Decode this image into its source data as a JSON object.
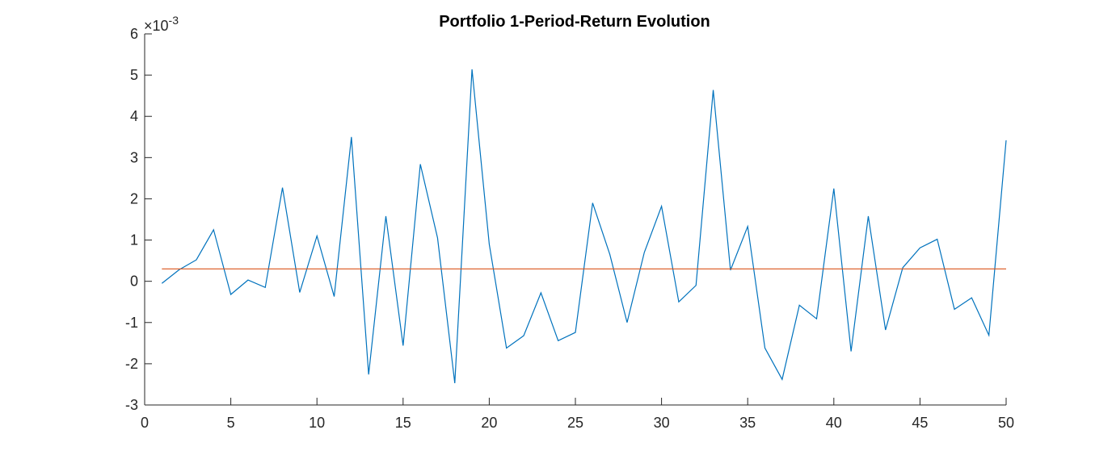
{
  "chart_data": {
    "type": "line",
    "title": "Portfolio 1-Period-Return Evolution",
    "xlabel": "",
    "ylabel": "",
    "xlim": [
      0,
      50
    ],
    "ylim": [
      -0.003,
      0.006
    ],
    "y_exponent_label": "×10",
    "y_exponent_power": "-3",
    "x_ticks": [
      "0",
      "5",
      "10",
      "15",
      "20",
      "25",
      "30",
      "35",
      "40",
      "45",
      "50"
    ],
    "y_ticks": [
      "-3",
      "-2",
      "-1",
      "0",
      "1",
      "2",
      "3",
      "4",
      "5",
      "6"
    ],
    "grid": false,
    "colors": {
      "returns": "#0072BD",
      "mean": "#D95319",
      "axis": "#262626"
    },
    "series": [
      {
        "type": "line",
        "x": [
          1,
          2,
          3,
          4,
          5,
          6,
          7,
          8,
          9,
          10,
          11,
          12,
          13,
          14,
          15,
          16,
          17,
          18,
          19,
          20,
          21,
          22,
          23,
          24,
          25,
          26,
          27,
          28,
          29,
          30,
          31,
          32,
          33,
          34,
          35,
          36,
          37,
          38,
          39,
          40,
          41,
          42,
          43,
          44,
          45,
          46,
          47,
          48,
          49,
          50
        ],
        "values": [
          -5e-05,
          0.00028,
          0.00052,
          0.00125,
          -0.00032,
          3e-05,
          -0.00015,
          0.00227,
          -0.00027,
          0.0011,
          -0.00037,
          0.0035,
          -0.00226,
          0.00158,
          -0.00156,
          0.00284,
          0.00105,
          -0.00247,
          0.00514,
          0.0009,
          -0.00162,
          -0.00132,
          -0.00028,
          -0.00144,
          -0.00124,
          0.0019,
          0.00065,
          -0.001,
          0.0007,
          0.00182,
          -0.0005,
          -0.0001,
          0.00464,
          0.00027,
          0.00133,
          -0.00162,
          -0.00238,
          -0.00058,
          -0.00091,
          0.00225,
          -0.0017,
          0.00158,
          -0.00118,
          0.00033,
          0.00081,
          0.00102,
          -0.00068,
          -0.0004,
          -0.00131,
          0.00342
        ]
      },
      {
        "type": "line",
        "x": [
          1,
          50
        ],
        "values": [
          0.0003,
          0.0003
        ]
      }
    ]
  }
}
